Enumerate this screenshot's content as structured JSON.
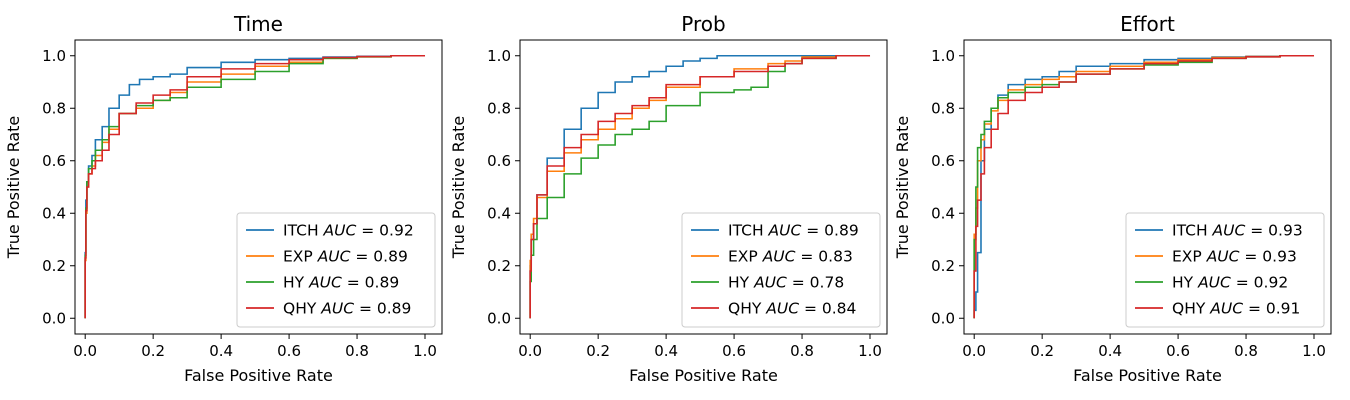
{
  "chart_data": [
    {
      "type": "line",
      "title": "Time",
      "xlabel": "False Positive Rate",
      "ylabel": "True Positive Rate",
      "xlim": [
        -0.03,
        1.05
      ],
      "ylim": [
        -0.06,
        1.06
      ],
      "xticks": [
        "0.0",
        "0.2",
        "0.4",
        "0.6",
        "0.8",
        "1.0"
      ],
      "yticks": [
        "0.0",
        "0.2",
        "0.4",
        "0.6",
        "0.8",
        "1.0"
      ],
      "grid": false,
      "legend_position": "lower-right",
      "series": [
        {
          "name": "ITCH",
          "auc_label": "AUC",
          "auc_value": "= 0.92",
          "color": "#1f77b4",
          "x": [
            0,
            0.002,
            0.005,
            0.01,
            0.02,
            0.03,
            0.05,
            0.07,
            0.1,
            0.13,
            0.16,
            0.2,
            0.25,
            0.3,
            0.4,
            0.5,
            0.6,
            0.7,
            0.8,
            0.9,
            1.0
          ],
          "y": [
            0,
            0.25,
            0.45,
            0.52,
            0.58,
            0.62,
            0.68,
            0.73,
            0.8,
            0.85,
            0.89,
            0.91,
            0.92,
            0.93,
            0.955,
            0.975,
            0.985,
            0.99,
            0.995,
            0.998,
            1.0
          ]
        },
        {
          "name": "EXP",
          "auc_label": "AUC",
          "auc_value": "= 0.89",
          "color": "#ff7f0e",
          "x": [
            0,
            0.002,
            0.005,
            0.01,
            0.02,
            0.03,
            0.05,
            0.07,
            0.1,
            0.15,
            0.2,
            0.25,
            0.3,
            0.4,
            0.5,
            0.6,
            0.7,
            0.8,
            0.9,
            1.0
          ],
          "y": [
            0,
            0.22,
            0.4,
            0.5,
            0.55,
            0.58,
            0.62,
            0.67,
            0.72,
            0.78,
            0.8,
            0.83,
            0.86,
            0.9,
            0.93,
            0.96,
            0.975,
            0.99,
            0.996,
            1.0
          ]
        },
        {
          "name": "HY",
          "auc_label": "AUC",
          "auc_value": "= 0.89",
          "color": "#2ca02c",
          "x": [
            0,
            0.002,
            0.005,
            0.01,
            0.02,
            0.03,
            0.05,
            0.07,
            0.1,
            0.15,
            0.2,
            0.25,
            0.3,
            0.4,
            0.5,
            0.6,
            0.7,
            0.8,
            0.9,
            1.0
          ],
          "y": [
            0,
            0.24,
            0.42,
            0.52,
            0.57,
            0.6,
            0.64,
            0.68,
            0.73,
            0.78,
            0.81,
            0.83,
            0.84,
            0.88,
            0.91,
            0.94,
            0.97,
            0.99,
            0.996,
            1.0
          ]
        },
        {
          "name": "QHY",
          "auc_label": "AUC",
          "auc_value": "= 0.89",
          "color": "#d62728",
          "x": [
            0,
            0.002,
            0.005,
            0.01,
            0.02,
            0.03,
            0.05,
            0.07,
            0.1,
            0.15,
            0.2,
            0.25,
            0.3,
            0.4,
            0.5,
            0.6,
            0.7,
            0.8,
            0.9,
            1.0
          ],
          "y": [
            0,
            0.23,
            0.41,
            0.5,
            0.55,
            0.57,
            0.6,
            0.64,
            0.7,
            0.78,
            0.82,
            0.85,
            0.87,
            0.92,
            0.95,
            0.97,
            0.985,
            0.993,
            0.997,
            1.0
          ]
        }
      ]
    },
    {
      "type": "line",
      "title": "Prob",
      "xlabel": "False Positive Rate",
      "ylabel": "True Positive Rate",
      "xlim": [
        -0.03,
        1.05
      ],
      "ylim": [
        -0.06,
        1.06
      ],
      "xticks": [
        "0.0",
        "0.2",
        "0.4",
        "0.6",
        "0.8",
        "1.0"
      ],
      "yticks": [
        "0.0",
        "0.2",
        "0.4",
        "0.6",
        "0.8",
        "1.0"
      ],
      "grid": false,
      "legend_position": "lower-right",
      "series": [
        {
          "name": "ITCH",
          "auc_label": "AUC",
          "auc_value": "= 0.89",
          "color": "#1f77b4",
          "x": [
            0,
            0.003,
            0.01,
            0.02,
            0.05,
            0.1,
            0.15,
            0.2,
            0.25,
            0.3,
            0.35,
            0.4,
            0.45,
            0.5,
            0.55,
            0.6,
            0.7,
            0.8,
            0.9,
            1.0
          ],
          "y": [
            0,
            0.2,
            0.3,
            0.36,
            0.47,
            0.61,
            0.72,
            0.8,
            0.86,
            0.9,
            0.92,
            0.94,
            0.96,
            0.98,
            0.99,
            1.0,
            1.0,
            1.0,
            1.0,
            1.0
          ]
        },
        {
          "name": "EXP",
          "auc_label": "AUC",
          "auc_value": "= 0.83",
          "color": "#ff7f0e",
          "x": [
            0,
            0.003,
            0.01,
            0.02,
            0.05,
            0.1,
            0.15,
            0.2,
            0.25,
            0.3,
            0.35,
            0.4,
            0.5,
            0.6,
            0.7,
            0.75,
            0.8,
            0.9,
            1.0
          ],
          "y": [
            0,
            0.22,
            0.32,
            0.38,
            0.46,
            0.56,
            0.63,
            0.68,
            0.72,
            0.76,
            0.8,
            0.83,
            0.88,
            0.92,
            0.95,
            0.97,
            0.98,
            0.995,
            1.0
          ]
        },
        {
          "name": "HY",
          "auc_label": "AUC",
          "auc_value": "= 0.78",
          "color": "#2ca02c",
          "x": [
            0,
            0.003,
            0.01,
            0.02,
            0.05,
            0.1,
            0.15,
            0.2,
            0.25,
            0.3,
            0.35,
            0.4,
            0.5,
            0.6,
            0.65,
            0.7,
            0.75,
            0.8,
            0.9,
            1.0
          ],
          "y": [
            0,
            0.14,
            0.24,
            0.3,
            0.38,
            0.46,
            0.55,
            0.61,
            0.66,
            0.7,
            0.72,
            0.75,
            0.81,
            0.86,
            0.87,
            0.88,
            0.94,
            0.97,
            0.99,
            1.0
          ]
        },
        {
          "name": "QHY",
          "auc_label": "AUC",
          "auc_value": "= 0.84",
          "color": "#d62728",
          "x": [
            0,
            0.003,
            0.01,
            0.02,
            0.05,
            0.1,
            0.15,
            0.2,
            0.25,
            0.3,
            0.35,
            0.4,
            0.5,
            0.6,
            0.7,
            0.75,
            0.8,
            0.9,
            1.0
          ],
          "y": [
            0,
            0.18,
            0.3,
            0.36,
            0.47,
            0.58,
            0.65,
            0.7,
            0.75,
            0.78,
            0.81,
            0.84,
            0.89,
            0.92,
            0.94,
            0.96,
            0.97,
            0.99,
            1.0
          ]
        }
      ]
    },
    {
      "type": "line",
      "title": "Effort",
      "xlabel": "False Positive Rate",
      "ylabel": "True Positive Rate",
      "xlim": [
        -0.03,
        1.05
      ],
      "ylim": [
        -0.06,
        1.06
      ],
      "xticks": [
        "0.0",
        "0.2",
        "0.4",
        "0.6",
        "0.8",
        "1.0"
      ],
      "yticks": [
        "0.0",
        "0.2",
        "0.4",
        "0.6",
        "0.8",
        "1.0"
      ],
      "grid": false,
      "legend_position": "lower-right",
      "series": [
        {
          "name": "ITCH",
          "auc_label": "AUC",
          "auc_value": "= 0.93",
          "color": "#1f77b4",
          "x": [
            0,
            0.005,
            0.01,
            0.02,
            0.03,
            0.05,
            0.07,
            0.1,
            0.15,
            0.2,
            0.25,
            0.3,
            0.4,
            0.5,
            0.6,
            0.7,
            0.8,
            0.9,
            1.0
          ],
          "y": [
            0,
            0.03,
            0.1,
            0.25,
            0.6,
            0.72,
            0.8,
            0.85,
            0.89,
            0.91,
            0.92,
            0.94,
            0.96,
            0.97,
            0.985,
            0.99,
            0.995,
            0.998,
            1.0
          ]
        },
        {
          "name": "EXP",
          "auc_label": "AUC",
          "auc_value": "= 0.93",
          "color": "#ff7f0e",
          "x": [
            0,
            0.005,
            0.01,
            0.02,
            0.03,
            0.05,
            0.07,
            0.1,
            0.15,
            0.2,
            0.25,
            0.3,
            0.4,
            0.5,
            0.6,
            0.7,
            0.8,
            0.9,
            1.0
          ],
          "y": [
            0,
            0.32,
            0.42,
            0.6,
            0.68,
            0.74,
            0.79,
            0.83,
            0.87,
            0.89,
            0.91,
            0.92,
            0.94,
            0.96,
            0.975,
            0.985,
            0.993,
            0.997,
            1.0
          ]
        },
        {
          "name": "HY",
          "auc_label": "AUC",
          "auc_value": "= 0.92",
          "color": "#2ca02c",
          "x": [
            0,
            0.005,
            0.01,
            0.02,
            0.03,
            0.05,
            0.07,
            0.1,
            0.15,
            0.2,
            0.25,
            0.3,
            0.4,
            0.5,
            0.6,
            0.7,
            0.8,
            0.9,
            1.0
          ],
          "y": [
            0,
            0.3,
            0.5,
            0.65,
            0.7,
            0.75,
            0.8,
            0.84,
            0.86,
            0.88,
            0.89,
            0.9,
            0.93,
            0.95,
            0.965,
            0.975,
            0.99,
            0.996,
            1.0
          ]
        },
        {
          "name": "QHY",
          "auc_label": "AUC",
          "auc_value": "= 0.91",
          "color": "#d62728",
          "x": [
            0,
            0.005,
            0.01,
            0.02,
            0.03,
            0.05,
            0.07,
            0.1,
            0.15,
            0.2,
            0.25,
            0.3,
            0.4,
            0.5,
            0.6,
            0.7,
            0.8,
            0.9,
            1.0
          ],
          "y": [
            0,
            0.18,
            0.35,
            0.45,
            0.55,
            0.65,
            0.72,
            0.78,
            0.83,
            0.86,
            0.88,
            0.9,
            0.93,
            0.95,
            0.97,
            0.98,
            0.99,
            0.996,
            1.0
          ]
        }
      ]
    }
  ]
}
